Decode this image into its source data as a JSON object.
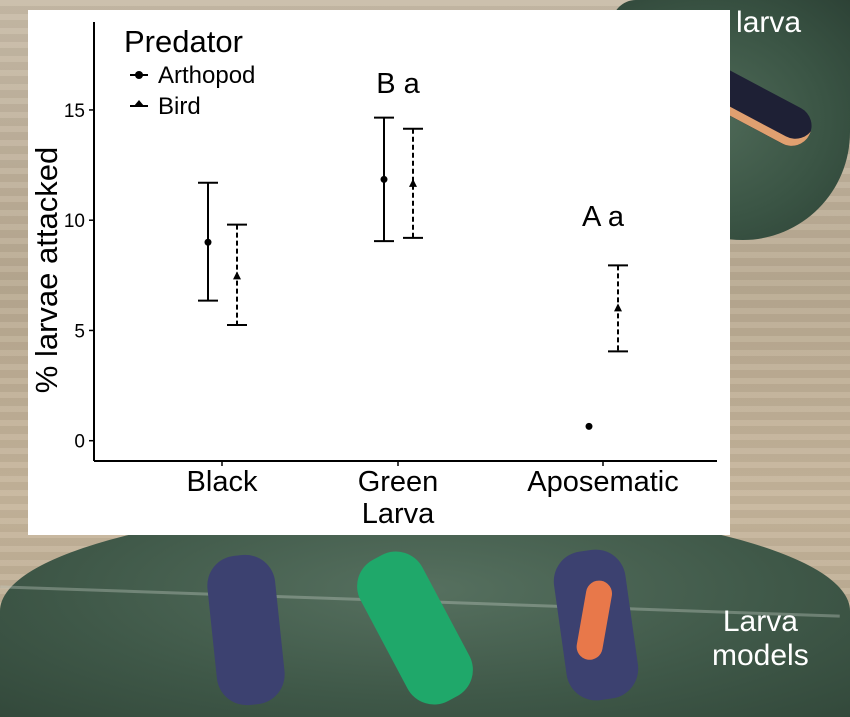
{
  "chart_data": {
    "type": "scatter",
    "ylabel": "% larvae attacked",
    "xlabel": "",
    "categories": [
      "Black",
      "Green\nLarva",
      "Aposematic"
    ],
    "ylim": [
      -1,
      19
    ],
    "yticks": [
      0,
      5,
      10,
      15
    ],
    "grid": false,
    "legend": {
      "title": "Predator",
      "placement": "top-left"
    },
    "series": [
      {
        "name": "Arthopod",
        "marker": "circle",
        "line": "solid",
        "values": [
          9.0,
          11.85,
          0.65
        ],
        "upper": [
          11.7,
          14.65,
          null
        ],
        "lower": [
          6.35,
          9.05,
          null
        ]
      },
      {
        "name": "Bird",
        "marker": "triangle",
        "line": "dashed",
        "values": [
          7.45,
          11.65,
          6.0
        ],
        "upper": [
          9.8,
          14.15,
          7.95
        ],
        "lower": [
          5.25,
          9.2,
          4.05
        ]
      }
    ],
    "annotations": [
      {
        "category": "Green\nLarva",
        "text": "B a"
      },
      {
        "category": "Aposematic",
        "text": "A a"
      }
    ]
  },
  "photo_labels": {
    "real": "Real larva",
    "models_line1": "Larva",
    "models_line2": "models"
  }
}
